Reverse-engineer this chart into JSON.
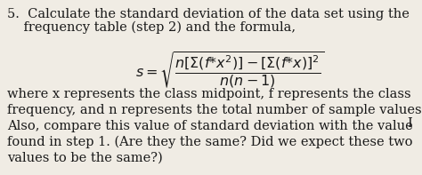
{
  "background_color": "#f0ece4",
  "text_color": "#1a1a1a",
  "line1": "5.  Calculate the standard deviation of the data set using the",
  "line2": "    frequency table (step 2) and the formula,",
  "formula": "$s = \\sqrt{\\dfrac{n[\\Sigma(f{*}x^{2})] - [\\Sigma(f{*}x)]^{2}}{n(n-1)}}$",
  "body_text": "where x represents the class midpoint, f represents the class\nfrequency, and n represents the total number of sample values.\nAlso, compare this value of standard deviation with the value\nfound in step 1. (Are they the same? Did we expect these two\nvalues to be the same?)",
  "font_size_header": 10.5,
  "font_size_formula": 11.5,
  "font_size_body": 10.5,
  "cursor_char": "I"
}
